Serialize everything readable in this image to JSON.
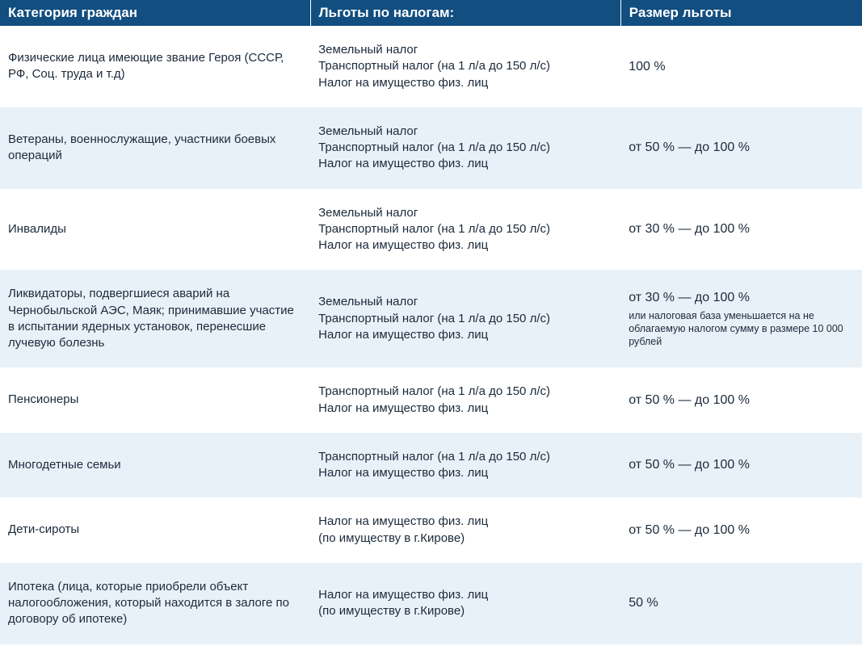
{
  "table": {
    "header_bg": "#124e80",
    "header_fg": "#ffffff",
    "row_bg_odd": "#ffffff",
    "row_bg_even": "#e9f1f8",
    "text_color": "#1b2a3a",
    "font_family": "Arial",
    "header_fontsize_pt": 13,
    "body_fontsize_pt": 11,
    "note_fontsize_pt": 9,
    "columns": [
      {
        "key": "category",
        "label": "Категория граждан",
        "width_pct": 36
      },
      {
        "key": "taxes",
        "label": "Льготы по налогам:",
        "width_pct": 36
      },
      {
        "key": "amount",
        "label": "Размер льготы",
        "width_pct": 28
      }
    ],
    "rows": [
      {
        "category": "Физические лица имеющие звание Героя (СССР, РФ,  Соц. труда и т.д)",
        "taxes": "Земельный налог\nТранспортный налог (на 1 л/а до 150 л/с)\nНалог на имущество физ. лиц",
        "amount": "100 %",
        "amount_note": ""
      },
      {
        "category": "Ветераны, военнослужащие, участники боевых операций",
        "taxes": "Земельный налог\nТранспортный налог (на 1 л/а до 150 л/с)\nНалог на имущество физ. лиц",
        "amount": "от 50 % — до 100 %",
        "amount_note": ""
      },
      {
        "category": "Инвалиды",
        "taxes": "Земельный налог\nТранспортный налог (на 1 л/а до 150 л/с)\nНалог на имущество физ. лиц",
        "amount": "от 30 % — до 100 %",
        "amount_note": ""
      },
      {
        "category": "Ликвидаторы, подвергшиеся аварий на Чернобыльской АЭС, Маяк; принимавшие участие в испытании ядерных установок, перенесшие лучевую болезнь",
        "taxes": "Земельный налог\nТранспортный налог (на 1 л/а до 150 л/с)\nНалог на имущество физ. лиц",
        "amount": "от 30 % — до 100 %",
        "amount_note": "или налоговая база уменьшается на не облагаемую налогом сумму в размере 10 000 рублей"
      },
      {
        "category": "Пенсионеры",
        "taxes": "Транспортный налог (на 1 л/а до 150 л/с)\nНалог на имущество физ. лиц",
        "amount": "от 50 % — до 100 %",
        "amount_note": ""
      },
      {
        "category": "Многодетные семьи",
        "taxes": "Транспортный налог (на 1 л/а до 150 л/с)\nНалог на имущество физ. лиц",
        "amount": "от 50 % — до 100 %",
        "amount_note": ""
      },
      {
        "category": "Дети-сироты",
        "taxes": "Налог на имущество физ. лиц\n(по имуществу в г.Кирове)",
        "amount": "от 50 % — до 100 %",
        "amount_note": ""
      },
      {
        "category": "Ипотека (лица, которые приобрели объект налогообложения, который находится в залоге по договору об ипотеке)",
        "taxes": "Налог на имущество физ. лиц\n(по имуществу в г.Кирове)",
        "amount": "50 %",
        "amount_note": ""
      }
    ]
  }
}
